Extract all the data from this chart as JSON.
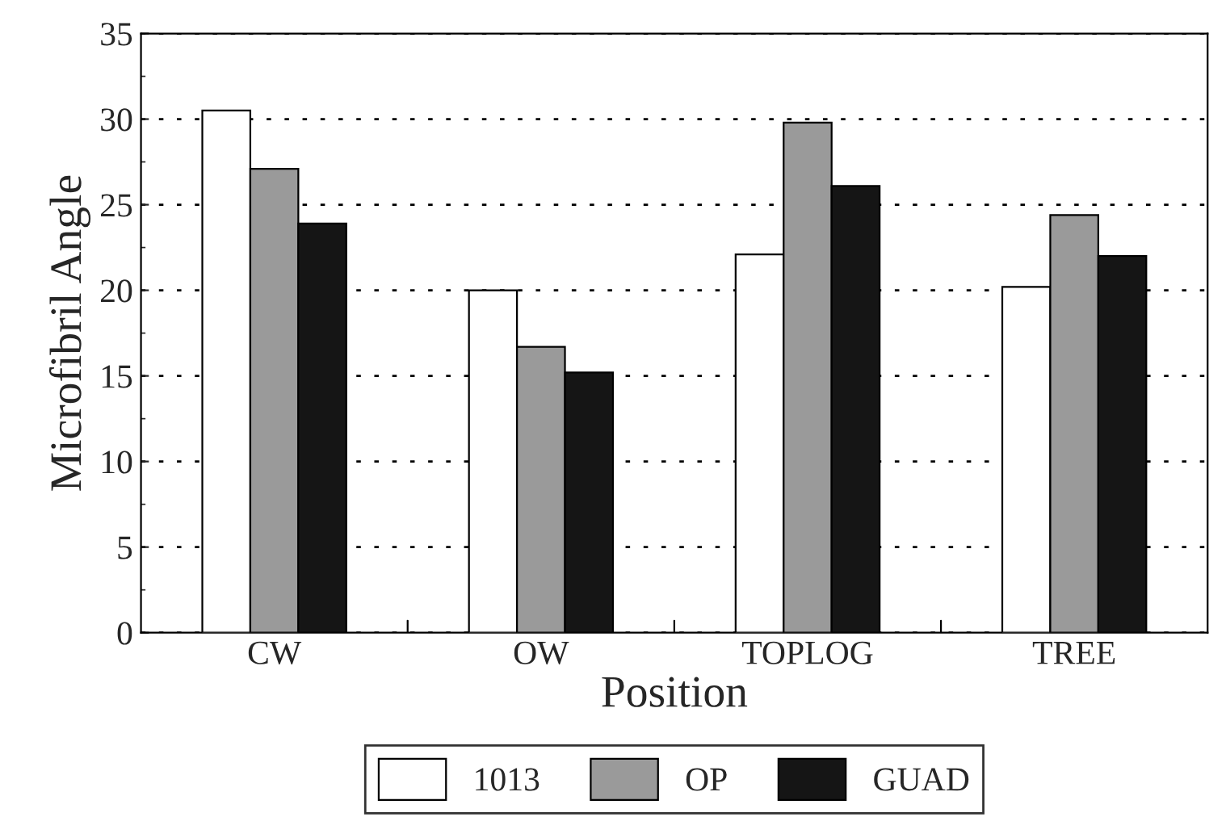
{
  "chart_data": {
    "type": "bar",
    "xlabel": "Position",
    "ylabel": "Microfibril Angle",
    "categories": [
      "CW",
      "OW",
      "TOPLOG",
      "TREE"
    ],
    "series": [
      {
        "name": "1013",
        "color": "#ffffff",
        "values": [
          30.5,
          20.0,
          22.1,
          20.2
        ]
      },
      {
        "name": "OP",
        "color": "#9a9a9a",
        "values": [
          27.1,
          16.7,
          29.8,
          24.4
        ]
      },
      {
        "name": "GUAD",
        "color": "#151515",
        "values": [
          23.9,
          15.2,
          26.1,
          22.0
        ]
      }
    ],
    "ylim": [
      0,
      35
    ],
    "yticks": [
      0,
      5,
      10,
      15,
      20,
      25,
      30,
      35
    ],
    "grid": "y",
    "legend": "bottom"
  }
}
